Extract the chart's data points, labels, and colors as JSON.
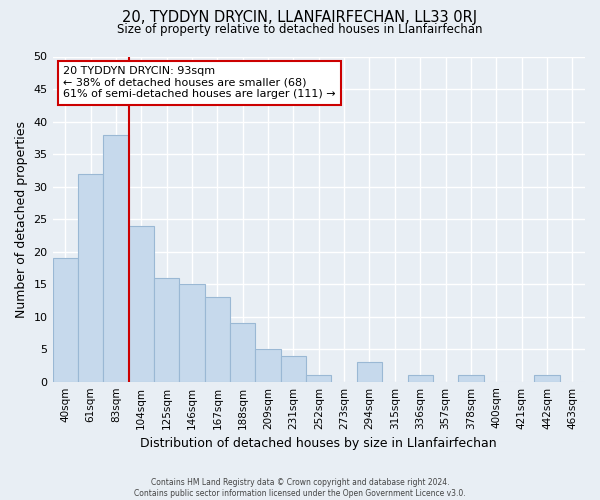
{
  "title_line1": "20, TYDDYN DRYCIN, LLANFAIRFECHAN, LL33 0RJ",
  "title_line2": "Size of property relative to detached houses in Llanfairfechan",
  "xlabel": "Distribution of detached houses by size in Llanfairfechan",
  "ylabel": "Number of detached properties",
  "bar_labels": [
    "40sqm",
    "61sqm",
    "83sqm",
    "104sqm",
    "125sqm",
    "146sqm",
    "167sqm",
    "188sqm",
    "209sqm",
    "231sqm",
    "252sqm",
    "273sqm",
    "294sqm",
    "315sqm",
    "336sqm",
    "357sqm",
    "378sqm",
    "400sqm",
    "421sqm",
    "442sqm",
    "463sqm"
  ],
  "bar_values": [
    19,
    32,
    38,
    24,
    16,
    15,
    13,
    9,
    5,
    4,
    1,
    0,
    3,
    0,
    1,
    0,
    1,
    0,
    0,
    1,
    0
  ],
  "bar_color": "#c6d9ec",
  "bar_edge_color": "#9ab8d4",
  "vline_color": "#cc0000",
  "ylim": [
    0,
    50
  ],
  "yticks": [
    0,
    5,
    10,
    15,
    20,
    25,
    30,
    35,
    40,
    45,
    50
  ],
  "annotation_title": "20 TYDDYN DRYCIN: 93sqm",
  "annotation_line1": "← 38% of detached houses are smaller (68)",
  "annotation_line2": "61% of semi-detached houses are larger (111) →",
  "annotation_box_color": "#ffffff",
  "annotation_box_edge": "#cc0000",
  "footer_line1": "Contains HM Land Registry data © Crown copyright and database right 2024.",
  "footer_line2": "Contains public sector information licensed under the Open Government Licence v3.0.",
  "background_color": "#e8eef4",
  "grid_color": "#ffffff"
}
